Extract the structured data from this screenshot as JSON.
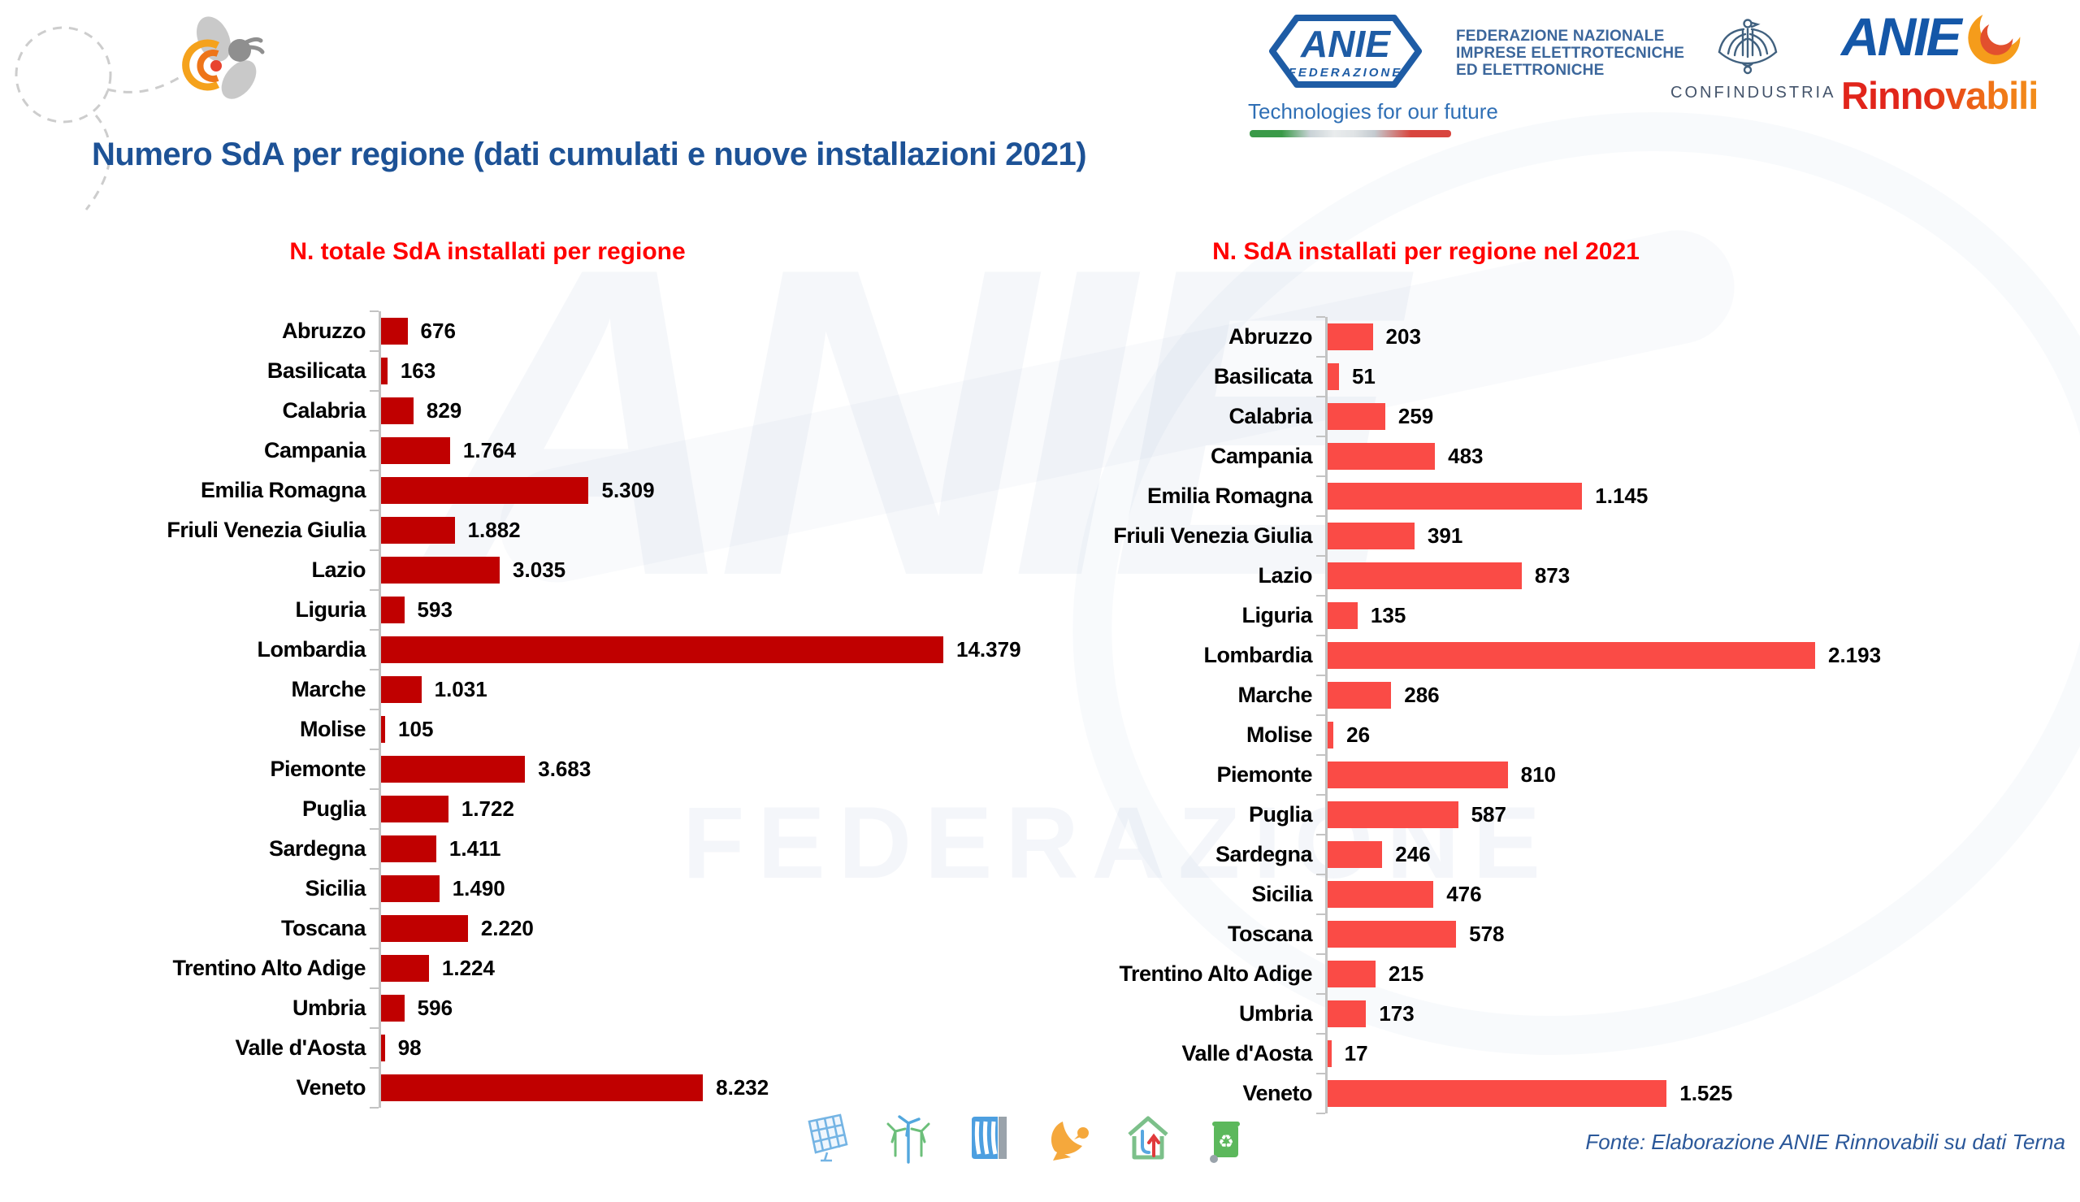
{
  "title": "Numero SdA per regione (dati cumulati e nuove installazioni 2021)",
  "header": {
    "anie_federazione": {
      "logo_text": "ANIE",
      "logo_subtext": "FEDERAZIONE",
      "tagline_line1": "FEDERAZIONE NAZIONALE",
      "tagline_line2": "IMPRESE ELETTROTECNICHE",
      "tagline_line3": "ED ELETTRONICHE",
      "slogan": "Technologies for our future"
    },
    "confindustria": {
      "label": "CONFINDUSTRIA"
    },
    "anie_rinnovabili": {
      "line1": "ANIE",
      "line2": "Rinnovabili"
    }
  },
  "watermark": {
    "line1": "ANIE",
    "line2": "FEDERAZIONE"
  },
  "colors": {
    "title_blue": "#1d5296",
    "chart_title_red": "#ff0000",
    "cumulative_bar": "#C00000",
    "new2021_bar": "#FA4B46",
    "axis_gray": "#c3c3c3",
    "source_blue": "#2a5799"
  },
  "chart_data": [
    {
      "type": "bar",
      "orientation": "horizontal",
      "title": "N. totale SdA installati per regione",
      "categories": [
        "Abruzzo",
        "Basilicata",
        "Calabria",
        "Campania",
        "Emilia Romagna",
        "Friuli Venezia Giulia",
        "Lazio",
        "Liguria",
        "Lombardia",
        "Marche",
        "Molise",
        "Piemonte",
        "Puglia",
        "Sardegna",
        "Sicilia",
        "Toscana",
        "Trentino Alto Adige",
        "Umbria",
        "Valle d'Aosta",
        "Veneto"
      ],
      "values": [
        676,
        163,
        829,
        1764,
        5309,
        1882,
        3035,
        593,
        14379,
        1031,
        105,
        3683,
        1722,
        1411,
        1490,
        2220,
        1224,
        596,
        98,
        8232
      ],
      "value_labels": [
        "676",
        "163",
        "829",
        "1.764",
        "5.309",
        "1.882",
        "3.035",
        "593",
        "14.379",
        "1.031",
        "105",
        "3.683",
        "1.722",
        "1.411",
        "1.490",
        "2.220",
        "1.224",
        "596",
        "98",
        "8.232"
      ],
      "bar_color": "#C00000",
      "xlim": [
        0,
        14379
      ],
      "grid": false,
      "value_label_position": "end"
    },
    {
      "type": "bar",
      "orientation": "horizontal",
      "title": "N. SdA installati per regione nel 2021",
      "categories": [
        "Abruzzo",
        "Basilicata",
        "Calabria",
        "Campania",
        "Emilia Romagna",
        "Friuli Venezia Giulia",
        "Lazio",
        "Liguria",
        "Lombardia",
        "Marche",
        "Molise",
        "Piemonte",
        "Puglia",
        "Sardegna",
        "Sicilia",
        "Toscana",
        "Trentino Alto Adige",
        "Umbria",
        "Valle d'Aosta",
        "Veneto"
      ],
      "values": [
        203,
        51,
        259,
        483,
        1145,
        391,
        873,
        135,
        2193,
        286,
        26,
        810,
        587,
        246,
        476,
        578,
        215,
        173,
        17,
        1525
      ],
      "value_labels": [
        "203",
        "51",
        "259",
        "483",
        "1.145",
        "391",
        "873",
        "135",
        "2.193",
        "286",
        "26",
        "810",
        "587",
        "246",
        "476",
        "578",
        "215",
        "173",
        "17",
        "1.525"
      ],
      "bar_color": "#FA4B46",
      "xlim": [
        0,
        2193
      ],
      "grid": false,
      "value_label_position": "end"
    }
  ],
  "footer": {
    "source": "Fonte: Elaborazione ANIE Rinnovabili su dati Terna",
    "icons": [
      "solar-panel-icon",
      "wind-turbines-icon",
      "hydro-dam-icon",
      "solar-thermal-icon",
      "heat-pump-house-icon",
      "recycle-bin-icon"
    ]
  }
}
